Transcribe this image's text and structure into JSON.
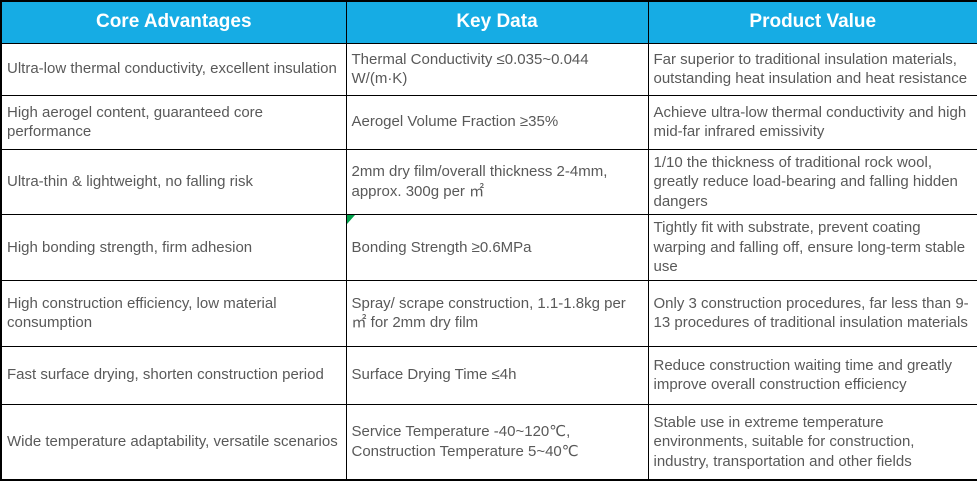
{
  "header": {
    "columns": [
      "Core Advantages",
      "Key Data",
      "Product Value"
    ]
  },
  "rows": [
    {
      "advantage": "Ultra-low thermal conductivity, excellent insulation",
      "key_data": "Thermal Conductivity ≤0.035~0.044 W/(m·K)",
      "product_value": "Far superior to traditional insulation materials, outstanding heat insulation and heat resistance"
    },
    {
      "advantage": "High aerogel content, guaranteed core performance",
      "key_data": "Aerogel Volume Fraction ≥35%",
      "product_value": "Achieve ultra-low thermal conductivity and high mid-far infrared emissivity"
    },
    {
      "advantage": "Ultra-thin & lightweight, no falling risk",
      "key_data": "2mm dry film/overall thickness 2-4mm, approx. 300g per ㎡",
      "product_value": "1/10 the thickness of traditional rock wool, greatly reduce load-bearing and falling hidden dangers"
    },
    {
      "advantage": "High bonding strength, firm adhesion",
      "key_data": "Bonding Strength ≥0.6MPa",
      "product_value": "Tightly fit with substrate, prevent coating warping and falling off, ensure long-term stable use",
      "has_corner_marker": true
    },
    {
      "advantage": "High construction efficiency, low material consumption",
      "key_data": "Spray/ scrape construction, 1.1-1.8kg per ㎡ for 2mm dry film",
      "product_value": "Only 3 construction procedures, far less than 9-13 procedures of traditional insulation materials"
    },
    {
      "advantage": "Fast surface drying, shorten construction period",
      "key_data": "Surface Drying Time ≤4h",
      "product_value": "Reduce construction waiting time and greatly improve overall construction efficiency"
    },
    {
      "advantage": "Wide temperature adaptability, versatile scenarios",
      "key_data": "Service Temperature -40~120℃, Construction Temperature 5~40℃",
      "product_value": "Stable use in extreme temperature environments, suitable for construction, industry, transportation and other fields"
    }
  ],
  "marker": {
    "name": "green-corner-triangle",
    "location": "Key Data cell of bonding strength row",
    "color": "#00A14B"
  },
  "colors": {
    "header_bg": "#16ACE4",
    "header_text": "#FFFFFF",
    "body_text": "#595959",
    "border": "#000000",
    "cell_bg": "#FFFFFF",
    "marker_green": "#00A14B"
  }
}
